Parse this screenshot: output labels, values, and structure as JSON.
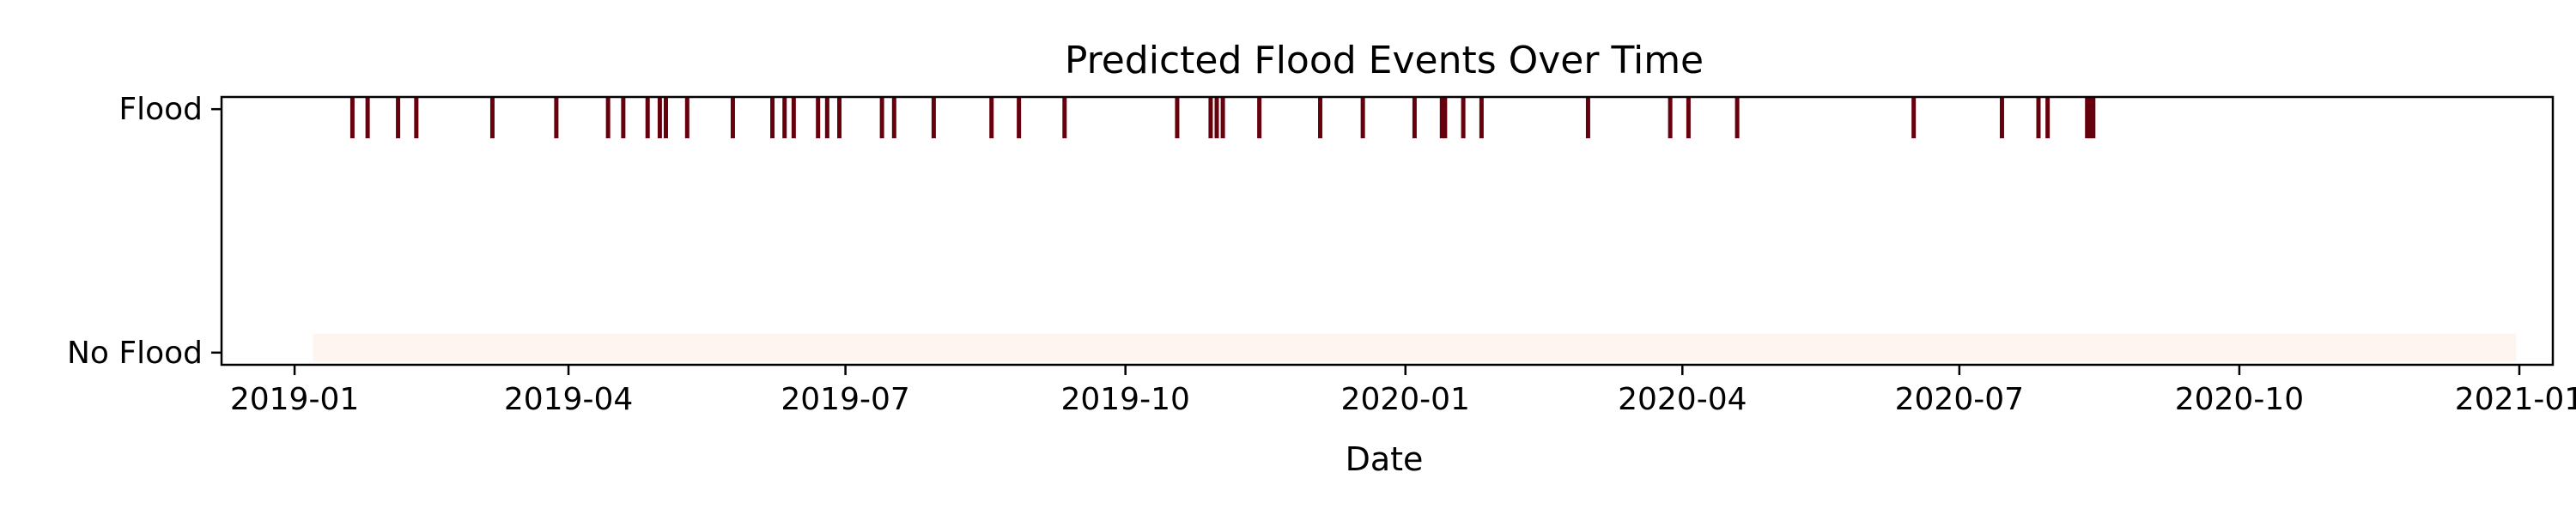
{
  "chart_data": {
    "type": "scatter",
    "title": "Predicted Flood Events Over Time",
    "xlabel": "Date",
    "ylabel": "",
    "x_tick_labels": [
      "2019-01",
      "2019-04",
      "2019-07",
      "2019-10",
      "2020-01",
      "2020-04",
      "2020-07",
      "2020-10",
      "2021-01"
    ],
    "y_tick_labels": [
      "No Flood",
      "Flood"
    ],
    "xlim": [
      "2018-12-08",
      "2021-01-12"
    ],
    "ylim": [
      -0.05,
      1.05
    ],
    "grid": false,
    "legend": "none",
    "flood_color": "#67000d",
    "no_flood_color": "#fff5f0",
    "flood_dates": [
      "2019-01-20",
      "2019-01-25",
      "2019-02-04",
      "2019-02-10",
      "2019-03-07",
      "2019-03-28",
      "2019-04-14",
      "2019-04-19",
      "2019-04-27",
      "2019-05-01",
      "2019-05-03",
      "2019-05-10",
      "2019-05-25",
      "2019-06-07",
      "2019-06-11",
      "2019-06-14",
      "2019-06-22",
      "2019-06-25",
      "2019-06-29",
      "2019-07-13",
      "2019-07-17",
      "2019-07-30",
      "2019-08-18",
      "2019-08-27",
      "2019-09-11",
      "2019-10-18",
      "2019-10-29",
      "2019-10-31",
      "2019-11-02",
      "2019-11-14",
      "2019-12-04",
      "2019-12-18",
      "2020-01-04",
      "2020-01-13",
      "2020-01-14",
      "2020-01-20",
      "2020-01-26",
      "2020-03-01",
      "2020-03-28",
      "2020-04-03",
      "2020-04-19",
      "2020-06-16",
      "2020-07-15",
      "2020-07-27",
      "2020-07-30",
      "2020-08-12",
      "2020-08-13",
      "2020-08-14"
    ],
    "no_flood_range": [
      "2019-01-07",
      "2020-12-31"
    ]
  }
}
